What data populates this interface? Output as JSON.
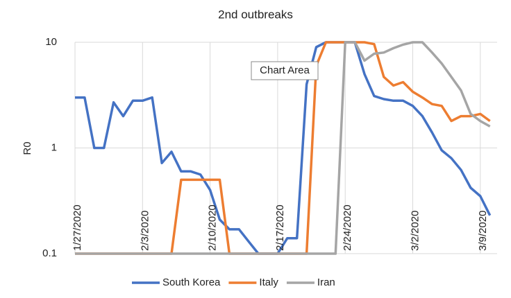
{
  "chart_data": {
    "type": "line",
    "title": "2nd outbreaks",
    "y_label": "R0",
    "tooltip": "Chart Area",
    "log_y": true,
    "grid": true,
    "legend": "bottom",
    "ylim": [
      0.1,
      10
    ],
    "yticks": [
      0.1,
      1,
      10
    ],
    "categories": [
      "1/27/2020",
      null,
      null,
      null,
      null,
      null,
      null,
      "2/3/2020",
      null,
      null,
      null,
      null,
      null,
      null,
      "2/10/2020",
      null,
      null,
      null,
      null,
      null,
      null,
      "2/17/2020",
      null,
      null,
      null,
      null,
      null,
      null,
      "2/24/2020",
      null,
      null,
      null,
      null,
      null,
      null,
      "3/2/2020",
      null,
      null,
      null,
      null,
      null,
      null,
      "3/9/2020",
      null
    ],
    "series": [
      {
        "name": "South Korea",
        "color": "#4472c4",
        "values": [
          3.0,
          3.0,
          1.0,
          1.0,
          2.7,
          2.0,
          2.8,
          2.8,
          3.0,
          0.72,
          0.92,
          0.6,
          0.6,
          0.56,
          0.4,
          0.21,
          0.17,
          0.17,
          0.13,
          0.1,
          0.1,
          0.1,
          0.14,
          0.14,
          4.0,
          9.0,
          10,
          10,
          10,
          10,
          5.0,
          3.1,
          2.9,
          2.8,
          2.8,
          2.5,
          2.0,
          1.4,
          0.95,
          0.8,
          0.62,
          0.42,
          0.35,
          0.23
        ]
      },
      {
        "name": "Italy",
        "color": "#ed7d31",
        "values": [
          0.1,
          0.1,
          0.1,
          0.1,
          0.1,
          0.1,
          0.1,
          0.1,
          0.1,
          0.1,
          0.1,
          0.5,
          0.5,
          0.5,
          0.5,
          0.5,
          0.1,
          0.1,
          0.1,
          0.1,
          0.1,
          0.1,
          0.1,
          0.1,
          0.1,
          6.0,
          10,
          10,
          10,
          10,
          10,
          9.6,
          4.7,
          3.9,
          4.2,
          3.4,
          3.0,
          2.6,
          2.5,
          1.8,
          2.0,
          2.0,
          2.1,
          1.8
        ]
      },
      {
        "name": "Iran",
        "color": "#a5a5a5",
        "values": [
          0.1,
          0.1,
          0.1,
          0.1,
          0.1,
          0.1,
          0.1,
          0.1,
          0.1,
          0.1,
          0.1,
          0.1,
          0.1,
          0.1,
          0.1,
          0.1,
          0.1,
          0.1,
          0.1,
          0.1,
          0.1,
          0.1,
          0.1,
          0.1,
          0.1,
          0.1,
          0.1,
          0.1,
          10,
          10,
          6.7,
          7.8,
          8.0,
          8.8,
          9.5,
          10,
          10,
          8.0,
          6.3,
          4.7,
          3.5,
          2.1,
          1.8,
          1.6
        ]
      }
    ]
  }
}
